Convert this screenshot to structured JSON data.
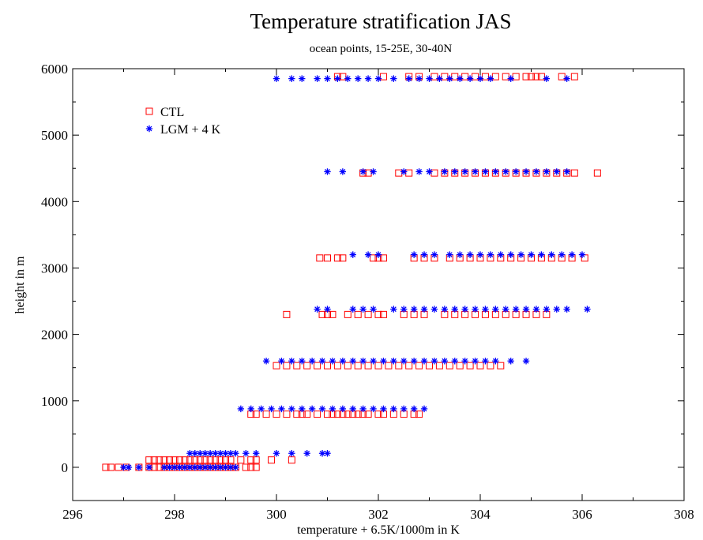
{
  "chart_data": {
    "type": "scatter",
    "title": "Temperature stratification JAS",
    "subtitle": "ocean points, 15-25E, 30-40N",
    "xlabel": "temperature + 6.5K/1000m in K",
    "ylabel": "height in m",
    "xlim": [
      296,
      308
    ],
    "ylim": [
      -500,
      6000
    ],
    "xticks": [
      296,
      298,
      300,
      302,
      304,
      306,
      308
    ],
    "yticks": [
      0,
      1000,
      2000,
      3000,
      4000,
      5000,
      6000
    ],
    "grid": false,
    "legend_position": "top-left",
    "series": [
      {
        "name": "CTL",
        "marker": "open-square",
        "color": "#ff0000",
        "levels": [
          {
            "y": 0,
            "x": [
              296.65,
              296.75,
              296.9,
              297.05,
              297.3,
              297.5,
              297.6,
              297.7,
              297.8,
              297.9,
              298.0,
              298.1,
              298.2,
              298.3,
              298.4,
              298.5,
              298.6,
              298.7,
              298.8,
              298.9,
              299.0,
              299.1,
              299.2,
              299.4,
              299.5,
              299.6
            ]
          },
          {
            "y": 110,
            "x": [
              297.5,
              297.6,
              297.7,
              297.8,
              297.9,
              298.0,
              298.1,
              298.2,
              298.3,
              298.4,
              298.5,
              298.6,
              298.7,
              298.8,
              298.9,
              299.0,
              299.1,
              299.3,
              299.5,
              299.6,
              299.9,
              300.3
            ]
          },
          {
            "y": 800,
            "x": [
              299.5,
              299.6,
              299.8,
              300.0,
              300.2,
              300.4,
              300.5,
              300.6,
              300.8,
              301.0,
              301.1,
              301.2,
              301.3,
              301.4,
              301.5,
              301.6,
              301.7,
              301.8,
              302.0,
              302.1,
              302.3,
              302.5,
              302.7,
              302.8
            ]
          },
          {
            "y": 1530,
            "x": [
              300.0,
              300.2,
              300.4,
              300.6,
              300.8,
              301.0,
              301.2,
              301.4,
              301.6,
              301.8,
              302.0,
              302.2,
              302.4,
              302.6,
              302.8,
              303.0,
              303.2,
              303.4,
              303.6,
              303.8,
              304.0,
              304.2,
              304.4
            ]
          },
          {
            "y": 2300,
            "x": [
              300.2,
              300.9,
              301.0,
              301.1,
              301.4,
              301.6,
              301.8,
              302.0,
              302.1,
              302.5,
              302.7,
              302.9,
              303.3,
              303.5,
              303.7,
              303.9,
              304.1,
              304.3,
              304.5,
              304.7,
              304.9,
              305.1,
              305.3
            ]
          },
          {
            "y": 3150,
            "x": [
              300.85,
              301.0,
              301.2,
              301.3,
              301.9,
              302.0,
              302.1,
              302.7,
              302.9,
              303.1,
              303.4,
              303.6,
              303.8,
              304.0,
              304.2,
              304.4,
              304.6,
              304.8,
              305.0,
              305.2,
              305.4,
              305.6,
              305.8,
              306.05
            ]
          },
          {
            "y": 4430,
            "x": [
              301.7,
              301.8,
              302.4,
              302.6,
              303.1,
              303.3,
              303.5,
              303.7,
              303.9,
              304.1,
              304.3,
              304.5,
              304.7,
              304.9,
              305.1,
              305.3,
              305.5,
              305.7,
              305.85,
              306.3
            ]
          },
          {
            "y": 5880,
            "x": [
              301.2,
              301.3,
              302.1,
              302.6,
              302.8,
              303.1,
              303.3,
              303.5,
              303.7,
              303.9,
              304.1,
              304.3,
              304.5,
              304.7,
              304.9,
              305.0,
              305.1,
              305.2,
              305.6,
              305.85
            ]
          }
        ]
      },
      {
        "name": "LGM + 4 K",
        "marker": "asterisk",
        "color": "#0000ff",
        "levels": [
          {
            "y": 0,
            "x": [
              297.0,
              297.1,
              297.3,
              297.5,
              297.8,
              297.9,
              298.0,
              298.1,
              298.2,
              298.3,
              298.4,
              298.5,
              298.6,
              298.7,
              298.8,
              298.9,
              299.0,
              299.1,
              299.2
            ]
          },
          {
            "y": 210,
            "x": [
              298.3,
              298.4,
              298.5,
              298.6,
              298.7,
              298.8,
              298.9,
              299.0,
              299.1,
              299.2,
              299.4,
              299.6,
              300.0,
              300.3,
              300.6,
              300.9,
              301.0
            ]
          },
          {
            "y": 880,
            "x": [
              299.3,
              299.5,
              299.7,
              299.9,
              300.1,
              300.3,
              300.5,
              300.7,
              300.9,
              301.1,
              301.3,
              301.5,
              301.7,
              301.9,
              302.1,
              302.3,
              302.5,
              302.7,
              302.9
            ]
          },
          {
            "y": 1600,
            "x": [
              299.8,
              300.1,
              300.3,
              300.5,
              300.7,
              300.9,
              301.1,
              301.3,
              301.5,
              301.7,
              301.9,
              302.1,
              302.3,
              302.5,
              302.7,
              302.9,
              303.1,
              303.3,
              303.5,
              303.7,
              303.9,
              304.1,
              304.3,
              304.6,
              304.9
            ]
          },
          {
            "y": 2380,
            "x": [
              300.8,
              301.0,
              301.5,
              301.7,
              301.9,
              302.3,
              302.5,
              302.7,
              302.9,
              303.1,
              303.3,
              303.5,
              303.7,
              303.9,
              304.1,
              304.3,
              304.5,
              304.7,
              304.9,
              305.1,
              305.3,
              305.5,
              305.7,
              306.1
            ]
          },
          {
            "y": 3200,
            "x": [
              301.5,
              301.8,
              302.0,
              302.7,
              302.9,
              303.1,
              303.4,
              303.6,
              303.8,
              304.0,
              304.2,
              304.4,
              304.6,
              304.8,
              305.0,
              305.2,
              305.4,
              305.6,
              305.8,
              306.0
            ]
          },
          {
            "y": 4450,
            "x": [
              301.0,
              301.3,
              301.7,
              301.9,
              302.5,
              302.8,
              303.0,
              303.3,
              303.5,
              303.7,
              303.9,
              304.1,
              304.3,
              304.5,
              304.7,
              304.9,
              305.1,
              305.3,
              305.5,
              305.7
            ]
          },
          {
            "y": 5850,
            "x": [
              300.0,
              300.3,
              300.5,
              300.8,
              301.0,
              301.2,
              301.4,
              301.6,
              301.8,
              302.0,
              302.3,
              302.6,
              302.8,
              303.0,
              303.2,
              303.4,
              303.6,
              303.8,
              304.0,
              304.2,
              304.6,
              305.3,
              305.7
            ]
          }
        ]
      }
    ]
  }
}
